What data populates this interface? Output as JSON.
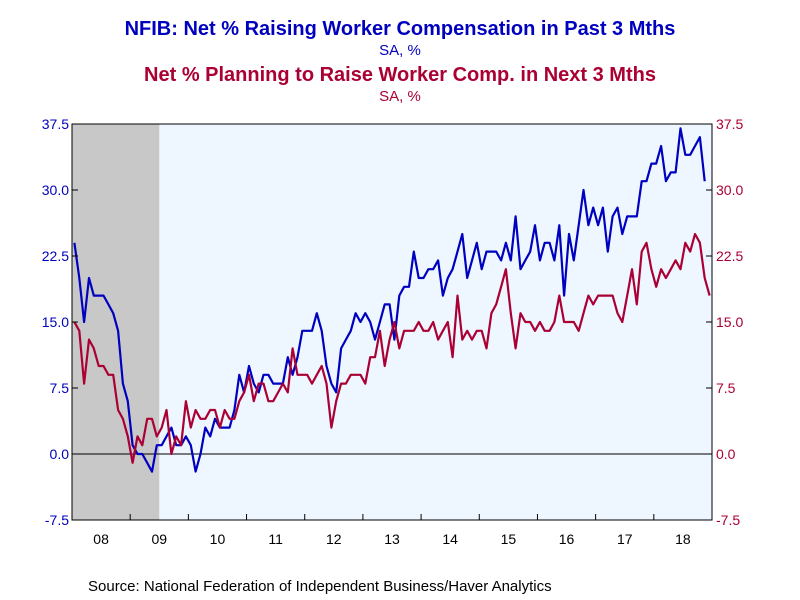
{
  "chart_data": {
    "type": "line",
    "title": "NFIB: Net % Raising Worker Compensation in Past 3 Mths",
    "title_units": "SA, %",
    "title2": "Net % Planning to Raise Worker Comp. in Next 3 Mths",
    "title2_units": "SA, %",
    "source": "Source:  National Federation of Independent Business/Haver Analytics",
    "ylim": [
      -7.5,
      37.5
    ],
    "yticks": [
      "37.5",
      "30.0",
      "22.5",
      "15.0",
      "7.5",
      "0.0",
      "-7.5"
    ],
    "xticks": [
      "08",
      "09",
      "10",
      "11",
      "12",
      "13",
      "14",
      "15",
      "16",
      "17",
      "18"
    ],
    "x_start": "2008-01",
    "recession": [
      "2008-01",
      "2009-06"
    ],
    "grid": false,
    "legend": "none",
    "colors": {
      "series1": "#0000bf",
      "series2": "#aa0033",
      "recession": "#c8c8c8",
      "plot_bg": "#eef6ff",
      "frame": "#000000"
    },
    "series": [
      {
        "color": "#0000bf",
        "values": [
          24,
          20,
          15,
          20,
          18,
          18,
          18,
          17,
          16,
          14,
          8,
          6,
          1,
          0,
          0,
          -1,
          -2,
          1,
          1,
          2,
          3,
          1,
          1,
          2,
          1,
          -2,
          0,
          3,
          2,
          4,
          3,
          3,
          3,
          5,
          9,
          7,
          10,
          8,
          7,
          9,
          9,
          8,
          8,
          8,
          11,
          9,
          11,
          14,
          14,
          14,
          16,
          14,
          10,
          8,
          7,
          12,
          13,
          14,
          16,
          15,
          16,
          15,
          13,
          15,
          17,
          17,
          13,
          18,
          19,
          19,
          23,
          20,
          20,
          21,
          21,
          22,
          18,
          20,
          21,
          23,
          25,
          20,
          22,
          24,
          21,
          23,
          23,
          23,
          22,
          24,
          22,
          27,
          21,
          22,
          23,
          26,
          22,
          24,
          24,
          22,
          26,
          18,
          25,
          22,
          26,
          30,
          26,
          28,
          26,
          28,
          23,
          27,
          28,
          25,
          27,
          27,
          27,
          31,
          31,
          33,
          33,
          35,
          31,
          32,
          32,
          37,
          34,
          34,
          35,
          36,
          31
        ]
      },
      {
        "color": "#aa0033",
        "values": [
          15,
          14,
          8,
          13,
          12,
          10,
          10,
          9,
          9,
          5,
          4,
          2,
          -1,
          2,
          1,
          4,
          4,
          2,
          3,
          5,
          0,
          2,
          1,
          6,
          3,
          5,
          4,
          4,
          5,
          5,
          3,
          5,
          4,
          4,
          6,
          7,
          9,
          6,
          8,
          8,
          6,
          6,
          7,
          8,
          7,
          12,
          9,
          9,
          9,
          8,
          9,
          10,
          8,
          3,
          6,
          8,
          8,
          9,
          9,
          9,
          8,
          11,
          11,
          14,
          10,
          13,
          15,
          12,
          14,
          14,
          14,
          15,
          14,
          14,
          15,
          13,
          14,
          15,
          11,
          18,
          13,
          14,
          13,
          14,
          14,
          12,
          16,
          17,
          19,
          21,
          16,
          12,
          16,
          15,
          15,
          14,
          15,
          14,
          14,
          15,
          18,
          15,
          15,
          15,
          14,
          16,
          18,
          17,
          18,
          18,
          18,
          18,
          16,
          15,
          18,
          21,
          17,
          23,
          24,
          21,
          19,
          21,
          20,
          21,
          22,
          21,
          24,
          23,
          25,
          24,
          20,
          18
        ]
      }
    ]
  }
}
